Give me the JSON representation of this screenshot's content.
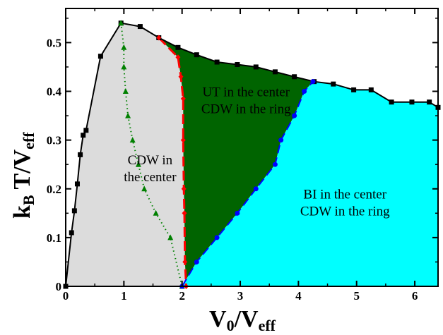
{
  "chart_data": {
    "type": "line",
    "xlabel": {
      "main": "V",
      "sub0": "0",
      "mid": "/V",
      "sub1": "eff"
    },
    "ylabel": {
      "k": "k",
      "sub_b": "B",
      "mid": " T/V",
      "sub_eff": "eff"
    },
    "xlim": [
      0,
      6.4
    ],
    "ylim": [
      0,
      0.57
    ],
    "xticks": [
      0,
      1,
      2,
      3,
      4,
      5,
      6
    ],
    "yticks": [
      0,
      0.1,
      0.2,
      0.3,
      0.4,
      0.5
    ],
    "xtick_labels": [
      "0",
      "1",
      "2",
      "3",
      "4",
      "5",
      "6"
    ],
    "ytick_labels": [
      "0",
      "0.1",
      "0.2",
      "0.3",
      "0.4",
      "0.5"
    ],
    "grid": false,
    "colors": {
      "outer_line": "#000000",
      "cdw_fill": "#dcdcdc",
      "ut_fill": "#006400",
      "bi_fill": "#00ffff",
      "green_dotted": "#008000",
      "red_dashed": "#ff0000",
      "blue_dashed": "#0000ff"
    },
    "series": [
      {
        "id": "outer-boundary",
        "x": [
          0,
          0.1,
          0.15,
          0.2,
          0.25,
          0.3,
          0.35,
          0.6,
          0.95,
          1.28,
          1.6,
          1.93,
          2.25,
          2.6,
          2.95,
          3.27,
          3.6,
          3.93,
          4.27,
          4.6,
          4.95,
          5.25,
          5.6,
          5.95,
          6.25,
          6.4
        ],
        "y": [
          0,
          0.11,
          0.155,
          0.21,
          0.27,
          0.31,
          0.32,
          0.472,
          0.54,
          0.533,
          0.51,
          0.49,
          0.475,
          0.46,
          0.455,
          0.45,
          0.44,
          0.43,
          0.42,
          0.415,
          0.403,
          0.403,
          0.378,
          0.378,
          0.378,
          0.367
        ]
      },
      {
        "id": "cdw-left-boundary",
        "x": [
          0.95,
          1.0,
          1.0,
          1.03,
          1.07,
          1.15,
          1.25,
          1.35,
          1.55,
          1.8,
          2.0
        ],
        "y": [
          0.54,
          0.49,
          0.45,
          0.4,
          0.35,
          0.3,
          0.25,
          0.2,
          0.15,
          0.1,
          0.0
        ]
      },
      {
        "id": "ut-boundary",
        "x": [
          1.6,
          1.93,
          1.98,
          2.02,
          2.02,
          2.03,
          2.04,
          2.05,
          2.07
        ],
        "y": [
          0.51,
          0.47,
          0.43,
          0.385,
          0.3,
          0.2,
          0.15,
          0.05,
          0.0
        ]
      },
      {
        "id": "bi-boundary",
        "x": [
          2.0,
          2.25,
          2.6,
          2.95,
          3.27,
          3.6,
          3.7,
          3.93,
          4.1,
          4.25
        ],
        "y": [
          0.0,
          0.05,
          0.1,
          0.15,
          0.2,
          0.25,
          0.3,
          0.35,
          0.4,
          0.42
        ]
      }
    ],
    "annotations": [
      {
        "id": "cdw-center",
        "lines": [
          "CDW in",
          "the center"
        ],
        "x": 1.45,
        "y": 0.25
      },
      {
        "id": "ut-center",
        "lines": [
          "UT in the center",
          "CDW in the ring"
        ],
        "x": 3.1,
        "y": 0.39
      },
      {
        "id": "bi-center",
        "lines": [
          "BI in the center",
          "CDW in the ring"
        ],
        "x": 4.8,
        "y": 0.18
      }
    ]
  }
}
